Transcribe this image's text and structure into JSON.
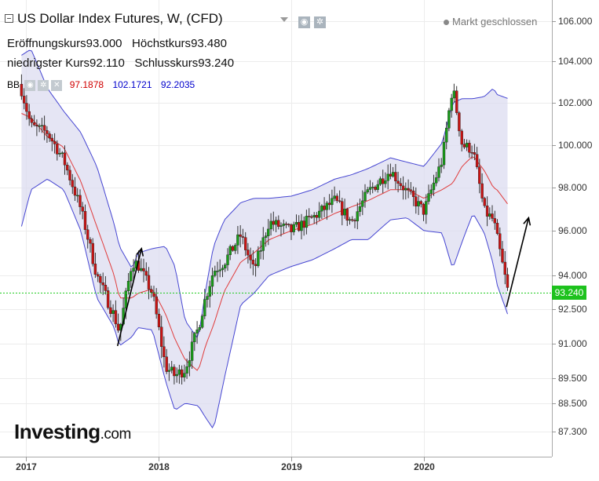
{
  "header": {
    "title": "US Dollar Index Futures, W, (CFD)",
    "status": "Markt geschlossen",
    "open_label": "Eröffnungskurs",
    "open_value": "93.000",
    "high_label": "Höchstkurs",
    "high_value": "93.480",
    "low_label": "niedrigster Kurs",
    "low_value": "92.110",
    "close_label": "Schlusskurs",
    "close_value": "93.240"
  },
  "indicator": {
    "name": "BB",
    "middle": "97.1878",
    "upper": "102.1721",
    "lower": "92.2035"
  },
  "logo": {
    "main": "Investing",
    "suffix": ".com"
  },
  "current_price_label": "93.240",
  "colors": {
    "up": "#1a9c1a",
    "down": "#c81414",
    "band_fill": "#dcdcf0",
    "band_line": "#4646d2",
    "mid_line": "#e03c3c",
    "price_line": "#22cc22"
  },
  "chart_data": {
    "type": "candlestick",
    "title": "US Dollar Index Futures, W, (CFD)",
    "y_ticks": [
      "106.000",
      "104.000",
      "102.000",
      "100.000",
      "98.000",
      "96.000",
      "94.000",
      "92.500",
      "91.000",
      "89.500",
      "88.500",
      "87.300"
    ],
    "x_ticks": [
      "2017",
      "2018",
      "2019",
      "2020"
    ],
    "ylim": [
      86.6,
      106.7
    ],
    "current_price": 93.24,
    "anchors": [
      {
        "date": "2016-12-20",
        "close": 102.6,
        "upper": 104.3,
        "mid": 101.5,
        "lower": 96.2
      },
      {
        "date": "2017-01-15",
        "close": 100.9,
        "upper": 104.6,
        "mid": 101.3,
        "lower": 97.9
      },
      {
        "date": "2017-03-01",
        "close": 100.6,
        "upper": 102.7,
        "mid": 100.4,
        "lower": 98.4
      },
      {
        "date": "2017-04-15",
        "close": 99.3,
        "upper": 101.6,
        "mid": 99.9,
        "lower": 97.9
      },
      {
        "date": "2017-06-01",
        "close": 97.0,
        "upper": 100.6,
        "mid": 98.3,
        "lower": 96.0
      },
      {
        "date": "2017-07-15",
        "close": 94.0,
        "upper": 99.0,
        "mid": 96.2,
        "lower": 93.0
      },
      {
        "date": "2017-09-01",
        "close": 92.2,
        "upper": 96.3,
        "mid": 94.0,
        "lower": 91.7
      },
      {
        "date": "2017-09-15",
        "close": 91.5,
        "upper": 95.3,
        "mid": 93.0,
        "lower": 90.9
      },
      {
        "date": "2017-10-20",
        "close": 94.6,
        "upper": 94.3,
        "mid": 93.0,
        "lower": 91.3
      },
      {
        "date": "2017-11-05",
        "close": 94.5,
        "upper": 95.0,
        "mid": 93.2,
        "lower": 91.7
      },
      {
        "date": "2017-12-15",
        "close": 93.2,
        "upper": 95.2,
        "mid": 93.4,
        "lower": 91.6
      },
      {
        "date": "2018-01-20",
        "close": 90.0,
        "upper": 95.3,
        "mid": 92.3,
        "lower": 89.4
      },
      {
        "date": "2018-02-15",
        "close": 89.6,
        "upper": 94.4,
        "mid": 91.2,
        "lower": 88.2
      },
      {
        "date": "2018-03-15",
        "close": 89.9,
        "upper": 92.0,
        "mid": 90.3,
        "lower": 88.5
      },
      {
        "date": "2018-04-20",
        "close": 91.7,
        "upper": 91.2,
        "mid": 89.8,
        "lower": 88.4
      },
      {
        "date": "2018-05-10",
        "close": 93.0,
        "upper": 93.3,
        "mid": 90.9,
        "lower": 87.9
      },
      {
        "date": "2018-06-01",
        "close": 94.2,
        "upper": 95.3,
        "mid": 91.8,
        "lower": 87.4
      },
      {
        "date": "2018-07-01",
        "close": 94.6,
        "upper": 96.5,
        "mid": 93.3,
        "lower": 89.5
      },
      {
        "date": "2018-08-15",
        "close": 95.8,
        "upper": 97.3,
        "mid": 94.6,
        "lower": 92.7
      },
      {
        "date": "2018-09-20",
        "close": 94.2,
        "upper": 97.5,
        "mid": 95.0,
        "lower": 93.2
      },
      {
        "date": "2018-11-01",
        "close": 96.4,
        "upper": 97.5,
        "mid": 95.6,
        "lower": 94.0
      },
      {
        "date": "2019-01-01",
        "close": 96.0,
        "upper": 97.6,
        "mid": 96.0,
        "lower": 94.4
      },
      {
        "date": "2019-03-01",
        "close": 96.6,
        "upper": 97.9,
        "mid": 96.3,
        "lower": 94.7
      },
      {
        "date": "2019-05-01",
        "close": 97.4,
        "upper": 98.4,
        "mid": 96.8,
        "lower": 95.2
      },
      {
        "date": "2019-06-15",
        "close": 96.4,
        "upper": 98.6,
        "mid": 97.1,
        "lower": 95.6
      },
      {
        "date": "2019-08-01",
        "close": 97.8,
        "upper": 98.9,
        "mid": 97.4,
        "lower": 95.6
      },
      {
        "date": "2019-10-01",
        "close": 98.8,
        "upper": 99.4,
        "mid": 97.9,
        "lower": 96.5
      },
      {
        "date": "2019-11-15",
        "close": 97.8,
        "upper": 99.2,
        "mid": 97.9,
        "lower": 96.6
      },
      {
        "date": "2020-01-01",
        "close": 96.9,
        "upper": 99.0,
        "mid": 97.5,
        "lower": 96.0
      },
      {
        "date": "2020-02-20",
        "close": 99.3,
        "upper": 100.1,
        "mid": 97.9,
        "lower": 95.9
      },
      {
        "date": "2020-03-20",
        "close": 102.8,
        "upper": 102.0,
        "mid": 98.2,
        "lower": 94.3
      },
      {
        "date": "2020-04-15",
        "close": 100.0,
        "upper": 102.2,
        "mid": 99.0,
        "lower": 95.5
      },
      {
        "date": "2020-05-15",
        "close": 99.8,
        "upper": 102.2,
        "mid": 99.5,
        "lower": 96.8
      },
      {
        "date": "2020-06-15",
        "close": 96.9,
        "upper": 102.3,
        "mid": 98.8,
        "lower": 95.9
      },
      {
        "date": "2020-07-10",
        "close": 96.5,
        "upper": 102.7,
        "mid": 98.0,
        "lower": 94.5
      },
      {
        "date": "2020-07-20",
        "close": 95.7,
        "upper": 102.4,
        "mid": 97.9,
        "lower": 93.6
      },
      {
        "date": "2020-08-20",
        "close": 93.2,
        "upper": 102.2,
        "mid": 97.2,
        "lower": 92.2
      }
    ],
    "arrows": [
      {
        "from": {
          "date": "2017-09-10",
          "value": 90.9
        },
        "to": {
          "date": "2017-11-15",
          "value": 95.2
        }
      },
      {
        "from": {
          "date": "2020-08-15",
          "value": 92.6
        },
        "to": {
          "date": "2020-10-15",
          "value": 96.6
        }
      }
    ]
  }
}
